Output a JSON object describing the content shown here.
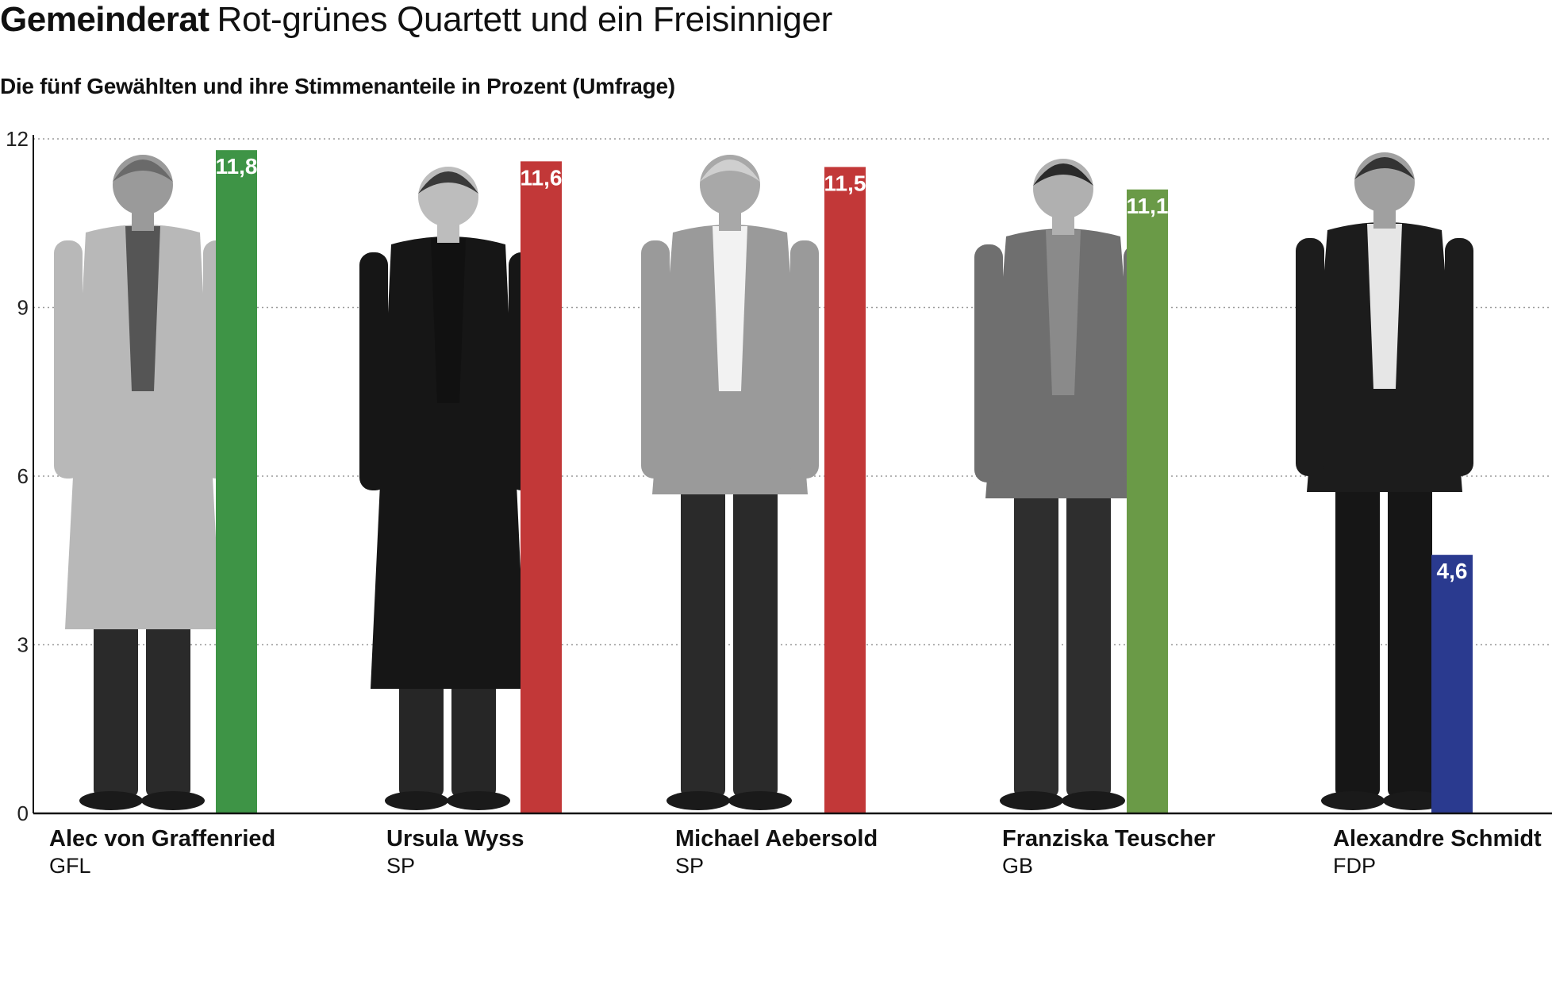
{
  "header": {
    "title_bold": "Gemeinderat",
    "title_rest": "Rot-grünes Quartett und ein Freisinniger",
    "subtitle": "Die fünf Gewählten und ihre Stimmenanteile in Prozent  (Umfrage)"
  },
  "chart_data": {
    "type": "bar",
    "title": "Gemeinderat Rot-grünes Quartett und ein Freisinniger",
    "subtitle": "Die fünf Gewählten und ihre Stimmenanteile in Prozent  (Umfrage)",
    "categories": [
      "Alec von Graffenried",
      "Ursula Wyss",
      "Michael Aebersold",
      "Franziska Teuscher",
      "Alexandre Schmidt"
    ],
    "parties": [
      "GFL",
      "SP",
      "SP",
      "GB",
      "FDP"
    ],
    "values": [
      11.8,
      11.6,
      11.5,
      11.1,
      4.6
    ],
    "value_labels": [
      "11,8",
      "11,6",
      "11,5",
      "11,1",
      "4,6"
    ],
    "colors": [
      "#3e9446",
      "#c23838",
      "#c23838",
      "#6a9a47",
      "#2a3a8f"
    ],
    "ylim": [
      0,
      12
    ],
    "yticks": [
      0,
      3,
      6,
      9,
      12
    ],
    "grid": "dotted-horizontal",
    "xlabel": "",
    "ylabel": ""
  }
}
